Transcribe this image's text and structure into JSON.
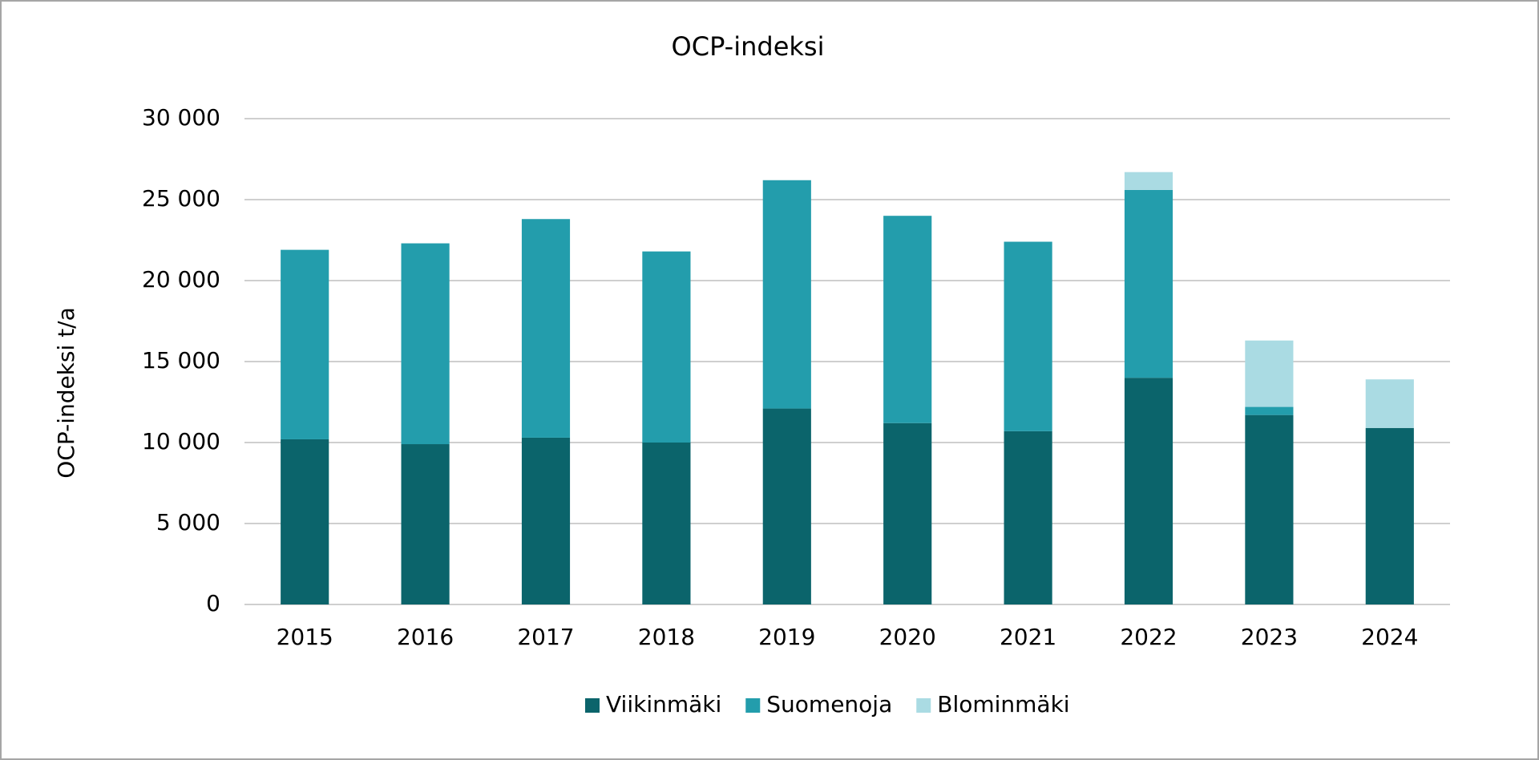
{
  "chart_data": {
    "type": "bar",
    "stacked": true,
    "title": "OCP-indeksi",
    "y_label": "OCP-indeksi t/a",
    "categories": [
      "2015",
      "2016",
      "2017",
      "2018",
      "2019",
      "2020",
      "2021",
      "2022",
      "2023",
      "2024"
    ],
    "series": [
      {
        "name": "Viikinmäki",
        "color": "#0b646b",
        "values": [
          10200,
          9900,
          10300,
          10000,
          12100,
          11200,
          10700,
          14000,
          11700,
          10900
        ]
      },
      {
        "name": "Suomenoja",
        "color": "#239dac",
        "values": [
          11700,
          12400,
          13500,
          11800,
          14100,
          12800,
          11700,
          11600,
          500,
          0
        ]
      },
      {
        "name": "Blominmäki",
        "color": "#aadbe3",
        "values": [
          0,
          0,
          0,
          0,
          0,
          0,
          0,
          1100,
          4100,
          3000
        ]
      }
    ],
    "ylim": [
      0,
      30000
    ],
    "yticks": [
      0,
      {
        "value": 5000,
        "label": "5 000"
      },
      {
        "value": 10000,
        "label": "10 000"
      },
      {
        "value": 15000,
        "label": "15 000"
      },
      {
        "value": 20000,
        "label": "20 000"
      },
      {
        "value": 25000,
        "label": "25 000"
      },
      {
        "value": 30000,
        "label": "30 000"
      }
    ],
    "grid": true,
    "legend": "bottom"
  }
}
